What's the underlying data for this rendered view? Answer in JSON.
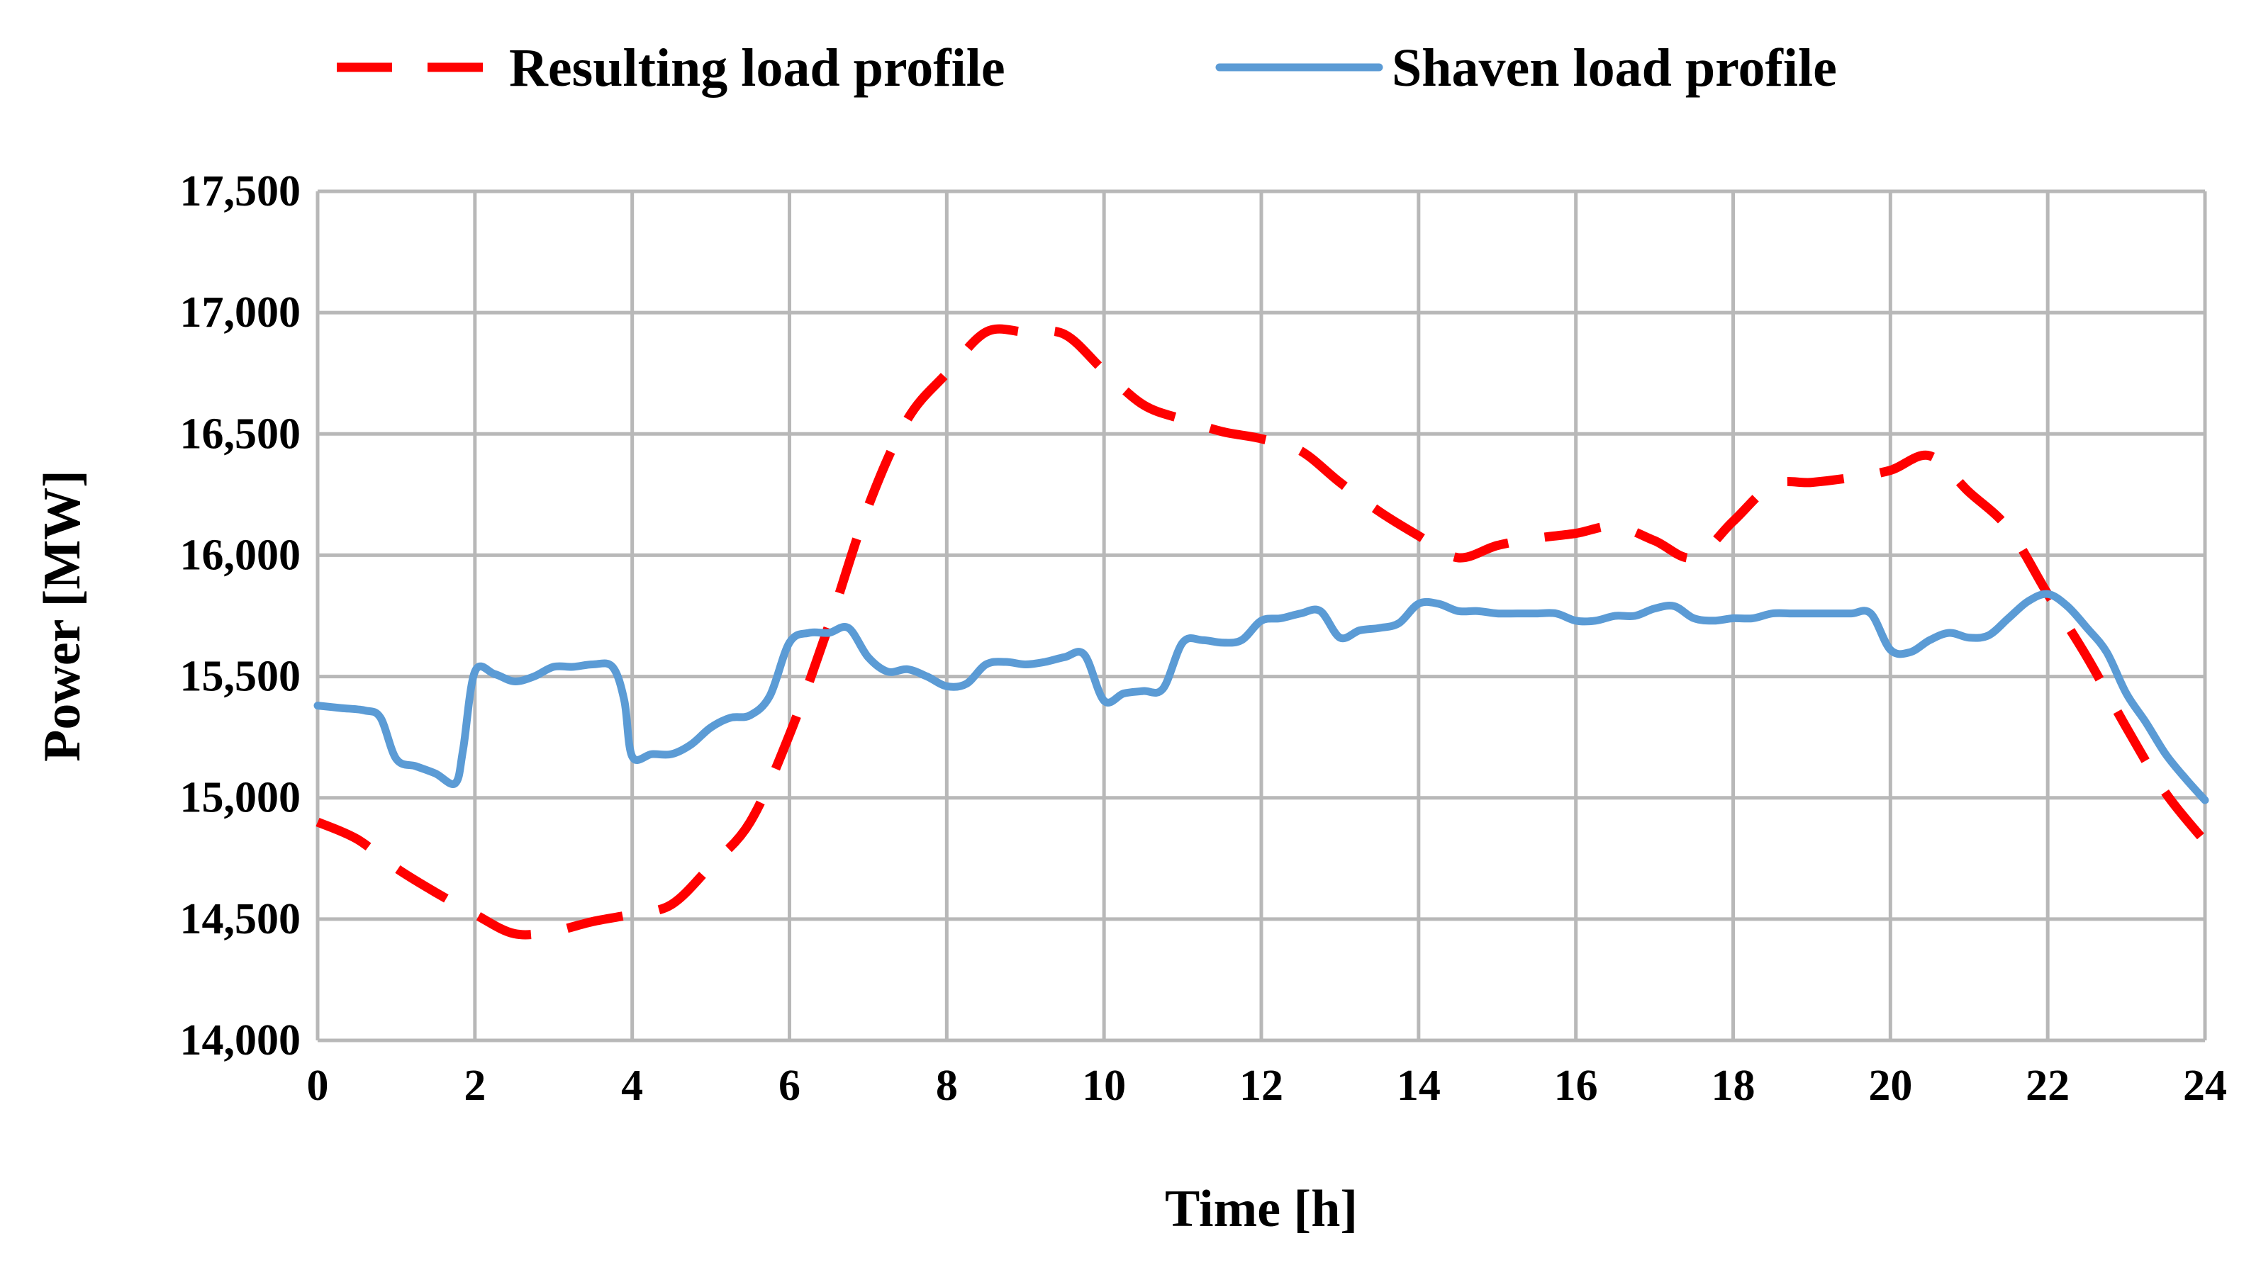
{
  "chart_data": {
    "type": "line",
    "title": "",
    "xlabel": "Time [h]",
    "ylabel": "Power [MW]",
    "xlim": [
      0,
      24
    ],
    "ylim": [
      14000,
      17500
    ],
    "x_ticks": [
      0,
      2,
      4,
      6,
      8,
      10,
      12,
      14,
      16,
      18,
      20,
      22,
      24
    ],
    "x_tick_labels": [
      "0",
      "2",
      "4",
      "6",
      "8",
      "10",
      "12",
      "14",
      "16",
      "18",
      "20",
      "22",
      "24"
    ],
    "y_ticks": [
      14000,
      14500,
      15000,
      15500,
      16000,
      16500,
      17000,
      17500
    ],
    "y_tick_labels": [
      "14,000",
      "14,500",
      "15,000",
      "15,500",
      "16,000",
      "16,500",
      "17,000",
      "17,500"
    ],
    "grid": true,
    "legend_position": "top-center",
    "series": [
      {
        "name": "Resulting load profile",
        "color": "#ff0000",
        "line_style": "dashed",
        "x": [
          0,
          0.5,
          1,
          1.5,
          2,
          2.5,
          3,
          3.5,
          4,
          4.5,
          5,
          5.5,
          6,
          6.5,
          7,
          7.5,
          8,
          8.5,
          9,
          9.5,
          10,
          10.5,
          11,
          11.5,
          12,
          12.5,
          13,
          13.5,
          14,
          14.5,
          15,
          15.5,
          16,
          16.5,
          17,
          17.5,
          18,
          18.5,
          19,
          19.5,
          20,
          20.5,
          21,
          21.5,
          22,
          22.5,
          23,
          23.5,
          24
        ],
        "y": [
          14900,
          14830,
          14710,
          14610,
          14520,
          14440,
          14450,
          14490,
          14520,
          14560,
          14720,
          14900,
          15260,
          15710,
          16200,
          16560,
          16750,
          16920,
          16920,
          16910,
          16760,
          16620,
          16560,
          16510,
          16480,
          16430,
          16300,
          16180,
          16080,
          15990,
          16040,
          16070,
          16090,
          16120,
          16060,
          15990,
          16140,
          16290,
          16300,
          16320,
          16350,
          16410,
          16260,
          16110,
          15840,
          15580,
          15290,
          15020,
          14820
        ]
      },
      {
        "name": "Shaven load profile",
        "color": "#5b9bd5",
        "line_style": "solid",
        "x": [
          0,
          0.3,
          0.6,
          0.8,
          1,
          1.25,
          1.5,
          1.75,
          1.85,
          2,
          2.25,
          2.5,
          2.75,
          3,
          3.25,
          3.5,
          3.75,
          3.9,
          4,
          4.25,
          4.5,
          4.75,
          5,
          5.25,
          5.5,
          5.75,
          6,
          6.25,
          6.5,
          6.75,
          7,
          7.25,
          7.5,
          7.75,
          8,
          8.25,
          8.5,
          8.75,
          9,
          9.25,
          9.5,
          9.75,
          10,
          10.25,
          10.5,
          10.75,
          11,
          11.25,
          11.5,
          11.75,
          12,
          12.25,
          12.5,
          12.75,
          13,
          13.25,
          13.5,
          13.75,
          14,
          14.25,
          14.5,
          14.75,
          15,
          15.25,
          15.5,
          15.75,
          16,
          16.25,
          16.5,
          16.75,
          17,
          17.25,
          17.5,
          17.75,
          18,
          18.25,
          18.5,
          18.75,
          19,
          19.25,
          19.5,
          19.75,
          20,
          20.25,
          20.5,
          20.75,
          21,
          21.25,
          21.5,
          21.75,
          22,
          22.25,
          22.5,
          22.75,
          23,
          23.25,
          23.5,
          23.75,
          24
        ],
        "y": [
          15380,
          15370,
          15360,
          15330,
          15160,
          15130,
          15100,
          15060,
          15200,
          15520,
          15510,
          15480,
          15500,
          15540,
          15540,
          15550,
          15540,
          15400,
          15170,
          15180,
          15180,
          15220,
          15290,
          15330,
          15340,
          15420,
          15640,
          15680,
          15680,
          15700,
          15580,
          15520,
          15530,
          15500,
          15460,
          15470,
          15550,
          15560,
          15550,
          15560,
          15580,
          15590,
          15400,
          15430,
          15440,
          15450,
          15640,
          15650,
          15640,
          15650,
          15730,
          15740,
          15760,
          15770,
          15660,
          15690,
          15700,
          15720,
          15800,
          15800,
          15770,
          15770,
          15760,
          15760,
          15760,
          15760,
          15730,
          15730,
          15750,
          15750,
          15780,
          15790,
          15740,
          15730,
          15740,
          15740,
          15760,
          15760,
          15760,
          15760,
          15760,
          15760,
          15610,
          15600,
          15650,
          15680,
          15660,
          15670,
          15740,
          15810,
          15840,
          15790,
          15700,
          15600,
          15430,
          15310,
          15180,
          15080,
          14990
        ]
      }
    ]
  }
}
